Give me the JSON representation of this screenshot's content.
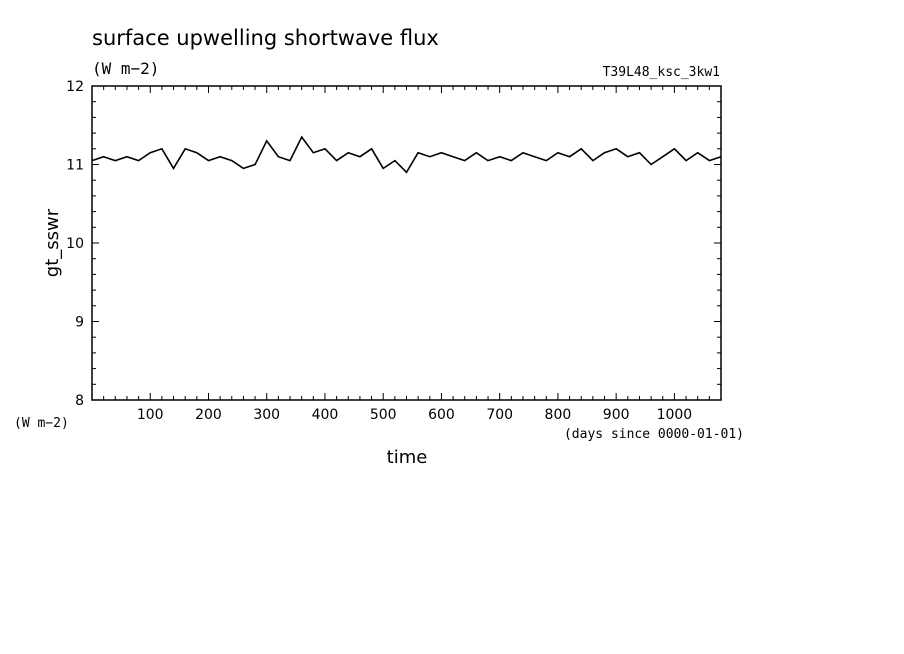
{
  "chart_data": {
    "type": "line",
    "title": "surface upwelling shortwave flux",
    "units_label": "(W m−2)",
    "run_label": "T39L48_ksc_3kw1",
    "xlabel": "time",
    "xunits": "(days since 0000-01-01)",
    "ylabel": "gt_sswr",
    "yunits": "(W m−2)",
    "xlim": [
      0,
      1080
    ],
    "ylim": [
      8,
      12
    ],
    "xticks": [
      100,
      200,
      300,
      400,
      500,
      600,
      700,
      800,
      900,
      1000
    ],
    "yticks": [
      8,
      9,
      10,
      11,
      12
    ],
    "grid": false,
    "series": [
      {
        "x": [
          0,
          20,
          40,
          60,
          80,
          100,
          120,
          140,
          160,
          180,
          200,
          220,
          240,
          260,
          280,
          300,
          320,
          340,
          360,
          380,
          400,
          420,
          440,
          460,
          480,
          500,
          520,
          540,
          560,
          580,
          600,
          620,
          640,
          660,
          680,
          700,
          720,
          740,
          760,
          780,
          800,
          820,
          840,
          860,
          880,
          900,
          920,
          940,
          960,
          980,
          1000,
          1020,
          1040,
          1060,
          1080
        ],
        "y": [
          11.05,
          11.1,
          11.05,
          11.1,
          11.05,
          11.15,
          11.2,
          10.95,
          11.2,
          11.15,
          11.05,
          11.1,
          11.05,
          10.95,
          11.0,
          11.3,
          11.1,
          11.05,
          11.35,
          11.15,
          11.2,
          11.05,
          11.15,
          11.1,
          11.2,
          10.95,
          11.05,
          10.9,
          11.15,
          11.1,
          11.15,
          11.1,
          11.05,
          11.15,
          11.05,
          11.1,
          11.05,
          11.15,
          11.1,
          11.05,
          11.15,
          11.1,
          11.2,
          11.05,
          11.15,
          11.2,
          11.1,
          11.15,
          11.0,
          11.1,
          11.2,
          11.05,
          11.15,
          11.05,
          11.1
        ]
      }
    ]
  }
}
